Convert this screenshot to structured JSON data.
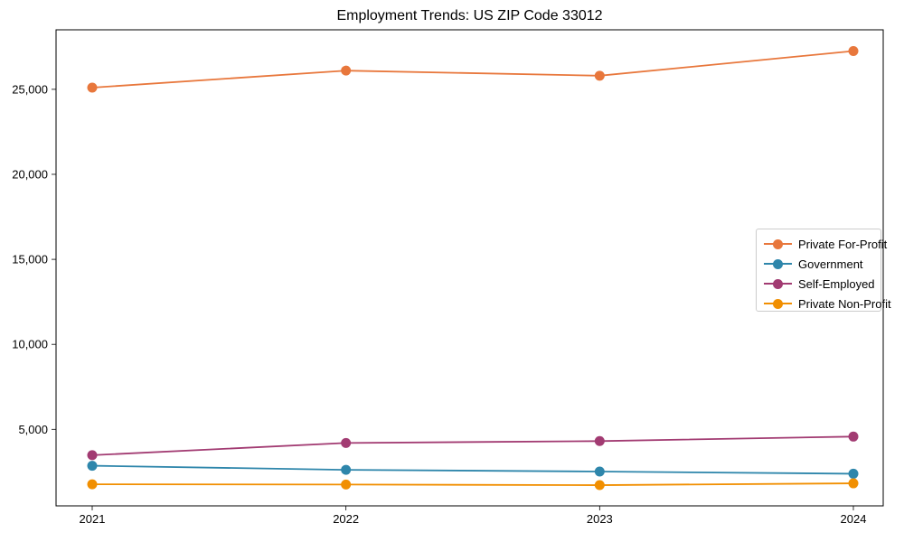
{
  "chart_data": {
    "type": "line",
    "title": "Employment Trends: US ZIP Code 33012",
    "xlabel": "",
    "ylabel": "",
    "categories": [
      "2021",
      "2022",
      "2023",
      "2024"
    ],
    "series": [
      {
        "name": "Private For-Profit",
        "color": "#E8773C",
        "values": [
          25100,
          26100,
          25800,
          27250
        ]
      },
      {
        "name": "Government",
        "color": "#2E86AB",
        "values": [
          2860,
          2620,
          2520,
          2390
        ]
      },
      {
        "name": "Self-Employed",
        "color": "#A23B72",
        "values": [
          3480,
          4200,
          4310,
          4575
        ]
      },
      {
        "name": "Private Non-Profit",
        "color": "#F18F01",
        "values": [
          1770,
          1755,
          1720,
          1825
        ]
      }
    ],
    "ylim": [
      500,
      28500
    ],
    "yticks": [
      {
        "value": 5000,
        "label": "5,000"
      },
      {
        "value": 10000,
        "label": "10,000"
      },
      {
        "value": 15000,
        "label": "15,000"
      },
      {
        "value": 20000,
        "label": "20,000"
      },
      {
        "value": 25000,
        "label": "25,000"
      }
    ],
    "grid": false,
    "marker": "circle",
    "legend_position": "center-right",
    "frame_color": "#000000",
    "background_color": "#ffffff"
  }
}
